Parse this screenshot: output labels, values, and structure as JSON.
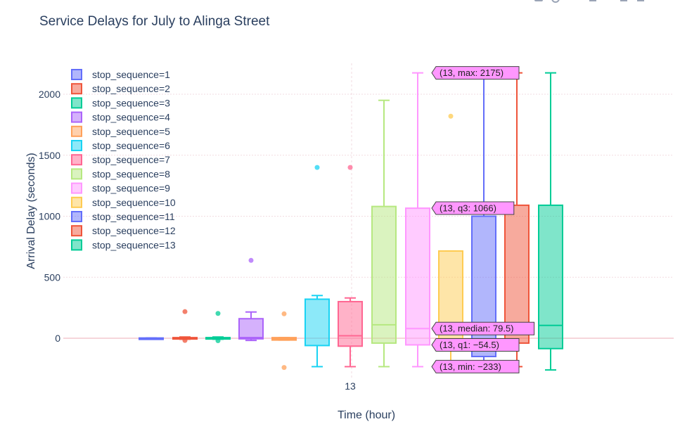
{
  "chart_data": {
    "type": "box",
    "title": "Service Delays for July to Alinga Street",
    "xlabel": "Time (hour)",
    "ylabel": "Arrival Delay (seconds)",
    "x_category": "13",
    "ylim": [
      -280,
      2260
    ],
    "yticks": [
      0,
      500,
      1000,
      1500,
      2000
    ],
    "grid": true,
    "legend": "top-left",
    "series": [
      {
        "name": "stop_sequence=1",
        "color": "#636efa",
        "q1": -2,
        "median": 0,
        "q3": 2,
        "lowerfence": -2,
        "upperfence": 2,
        "outliers": []
      },
      {
        "name": "stop_sequence=2",
        "color": "#ef553b",
        "q1": -3,
        "median": 0,
        "q3": 5,
        "lowerfence": -8,
        "upperfence": 10,
        "outliers": [
          218,
          -18
        ]
      },
      {
        "name": "stop_sequence=3",
        "color": "#00cc96",
        "q1": -3,
        "median": 0,
        "q3": 5,
        "lowerfence": -8,
        "upperfence": 10,
        "outliers": [
          203,
          -20
        ]
      },
      {
        "name": "stop_sequence=4",
        "color": "#ab63fa",
        "q1": -5,
        "median": 5,
        "q3": 160,
        "lowerfence": -18,
        "upperfence": 215,
        "outliers": [
          638
        ]
      },
      {
        "name": "stop_sequence=5",
        "color": "#ffa15a",
        "q1": -15,
        "median": -5,
        "q3": 5,
        "lowerfence": -15,
        "upperfence": 5,
        "outliers": [
          200,
          -240
        ]
      },
      {
        "name": "stop_sequence=6",
        "color": "#19d3f3",
        "q1": -60,
        "median": 320,
        "q3": 320,
        "lowerfence": -233,
        "upperfence": 350,
        "outliers": [
          1400
        ]
      },
      {
        "name": "stop_sequence=7",
        "color": "#ff6692",
        "q1": -65,
        "median": 20,
        "q3": 300,
        "lowerfence": -233,
        "upperfence": 330,
        "outliers": [
          1400
        ]
      },
      {
        "name": "stop_sequence=8",
        "color": "#b6e880",
        "q1": -40,
        "median": 110,
        "q3": 1080,
        "lowerfence": -233,
        "upperfence": 1950,
        "outliers": []
      },
      {
        "name": "stop_sequence=9",
        "color": "#ff97ff",
        "q1": -54.5,
        "median": 79.5,
        "q3": 1066,
        "lowerfence": -233,
        "upperfence": 2175,
        "outliers": []
      },
      {
        "name": "stop_sequence=10",
        "color": "#fecb52",
        "q1": -40,
        "median": 50,
        "q3": 715,
        "lowerfence": -233,
        "upperfence": 715,
        "outliers": [
          1820
        ]
      },
      {
        "name": "stop_sequence=11",
        "color": "#636efa",
        "q1": -150,
        "median": 80,
        "q3": 1000,
        "lowerfence": -233,
        "upperfence": 2175,
        "outliers": []
      },
      {
        "name": "stop_sequence=12",
        "color": "#ef553b",
        "q1": -40,
        "median": 110,
        "q3": 1090,
        "lowerfence": -233,
        "upperfence": 2175,
        "outliers": []
      },
      {
        "name": "stop_sequence=13",
        "color": "#00cc96",
        "q1": -85,
        "median": 105,
        "q3": 1090,
        "lowerfence": -260,
        "upperfence": 2175,
        "outliers": []
      }
    ],
    "hover_labels": [
      {
        "stat": "max",
        "value": 2175,
        "text": "(13, max: 2175)"
      },
      {
        "stat": "q3",
        "value": 1066,
        "text": "(13, q3: 1066)"
      },
      {
        "stat": "median",
        "value": 79.5,
        "text": "(13, median: 79.5)"
      },
      {
        "stat": "q1",
        "value": -54.5,
        "text": "(13, q1: −54.5)"
      },
      {
        "stat": "min",
        "value": -233,
        "text": "(13, min: −233)"
      }
    ],
    "hover_series_index": 8
  }
}
